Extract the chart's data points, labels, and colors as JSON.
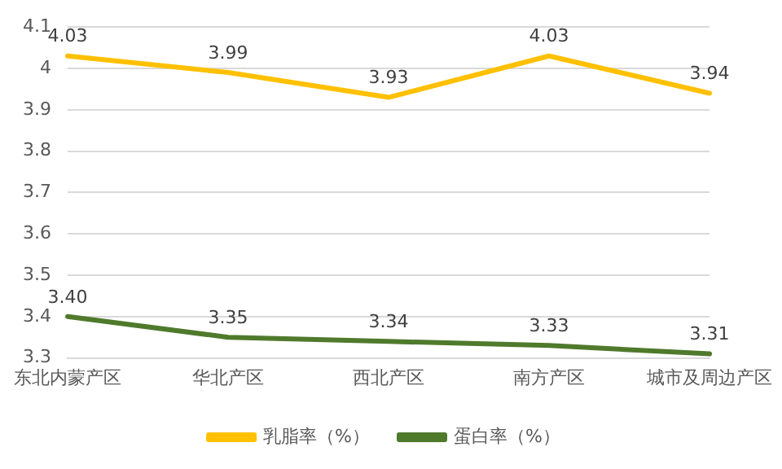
{
  "chart_data": {
    "type": "line",
    "categories": [
      "东北内蒙产区",
      "华北产区",
      "西北产区",
      "南方产区",
      "城市及周边产区"
    ],
    "series": [
      {
        "name": "乳脂率（%）",
        "color": "#ffc000",
        "values": [
          4.03,
          3.99,
          3.93,
          4.03,
          3.94
        ],
        "value_labels": [
          "4.03",
          "3.99",
          "3.93",
          "4.03",
          "3.94"
        ]
      },
      {
        "name": "蛋白率（%）",
        "color": "#4f7a2c",
        "values": [
          3.4,
          3.35,
          3.34,
          3.33,
          3.31
        ],
        "value_labels": [
          "3.40",
          "3.35",
          "3.34",
          "3.33",
          "3.31"
        ]
      }
    ],
    "ylim": [
      3.3,
      4.1
    ],
    "yticks": [
      3.3,
      3.4,
      3.5,
      3.6,
      3.7,
      3.8,
      3.9,
      4,
      4.1
    ],
    "grid": "y",
    "legend": "bottom",
    "marker": "none",
    "line_style": "solid"
  }
}
